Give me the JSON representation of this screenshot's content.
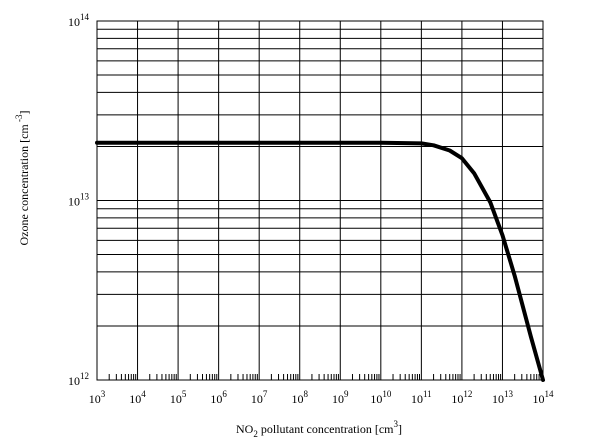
{
  "chart_data": {
    "type": "line",
    "title": "",
    "xlabel": {
      "pre": "NO",
      "sub": "2",
      "mid": " pollutant concentration [cm",
      "sup": "3",
      "post": "]"
    },
    "ylabel": {
      "pre": "Ozone concentration  [cm",
      "sup": " -3",
      "post": "]"
    },
    "x_scale": "log",
    "y_scale": "log",
    "xlim": [
      1000,
      100000000000000
    ],
    "ylim": [
      1000000000000,
      100000000000000
    ],
    "grid": true,
    "x_ticks": [
      {
        "base": "10",
        "exp": "3",
        "value": 1000.0
      },
      {
        "base": "10",
        "exp": "4",
        "value": 10000.0
      },
      {
        "base": "10",
        "exp": "5",
        "value": 100000.0
      },
      {
        "base": "10",
        "exp": "6",
        "value": 1000000.0
      },
      {
        "base": "10",
        "exp": "7",
        "value": 10000000.0
      },
      {
        "base": "10",
        "exp": "8",
        "value": 100000000.0
      },
      {
        "base": "10",
        "exp": "9",
        "value": 1000000000.0
      },
      {
        "base": "10",
        "exp": "10",
        "value": 10000000000.0
      },
      {
        "base": "10",
        "exp": "11",
        "value": 100000000000.0
      },
      {
        "base": "10",
        "exp": "12",
        "value": 1000000000000.0
      },
      {
        "base": "10",
        "exp": "13",
        "value": 10000000000000.0
      },
      {
        "base": "10",
        "exp": "14",
        "value": 100000000000000.0
      }
    ],
    "y_ticks": [
      {
        "base": "10",
        "exp": "12",
        "value": 1000000000000.0
      },
      {
        "base": "10",
        "exp": "13",
        "value": 10000000000000.0
      },
      {
        "base": "10",
        "exp": "14",
        "value": 100000000000000.0
      }
    ],
    "series": [
      {
        "color": "#000000",
        "x": [
          1000.0,
          10000.0,
          100000.0,
          1000000.0,
          10000000.0,
          100000000.0,
          1000000000.0,
          10000000000.0,
          100000000000.0,
          200000000000.0,
          500000000000.0,
          1000000000000.0,
          2000000000000.0,
          5000000000000.0,
          10000000000000.0,
          20000000000000.0,
          50000000000000.0,
          100000000000000.0
        ],
        "y": [
          21000000000000.0,
          21000000000000.0,
          21000000000000.0,
          21000000000000.0,
          21000000000000.0,
          21000000000000.0,
          21000000000000.0,
          21000000000000.0,
          20800000000000.0,
          20300000000000.0,
          19000000000000.0,
          17200000000000.0,
          14200000000000.0,
          9800000000000.0,
          6400000000000.0,
          3800000000000.0,
          1750000000000.0,
          1000000000000.0
        ]
      }
    ]
  }
}
